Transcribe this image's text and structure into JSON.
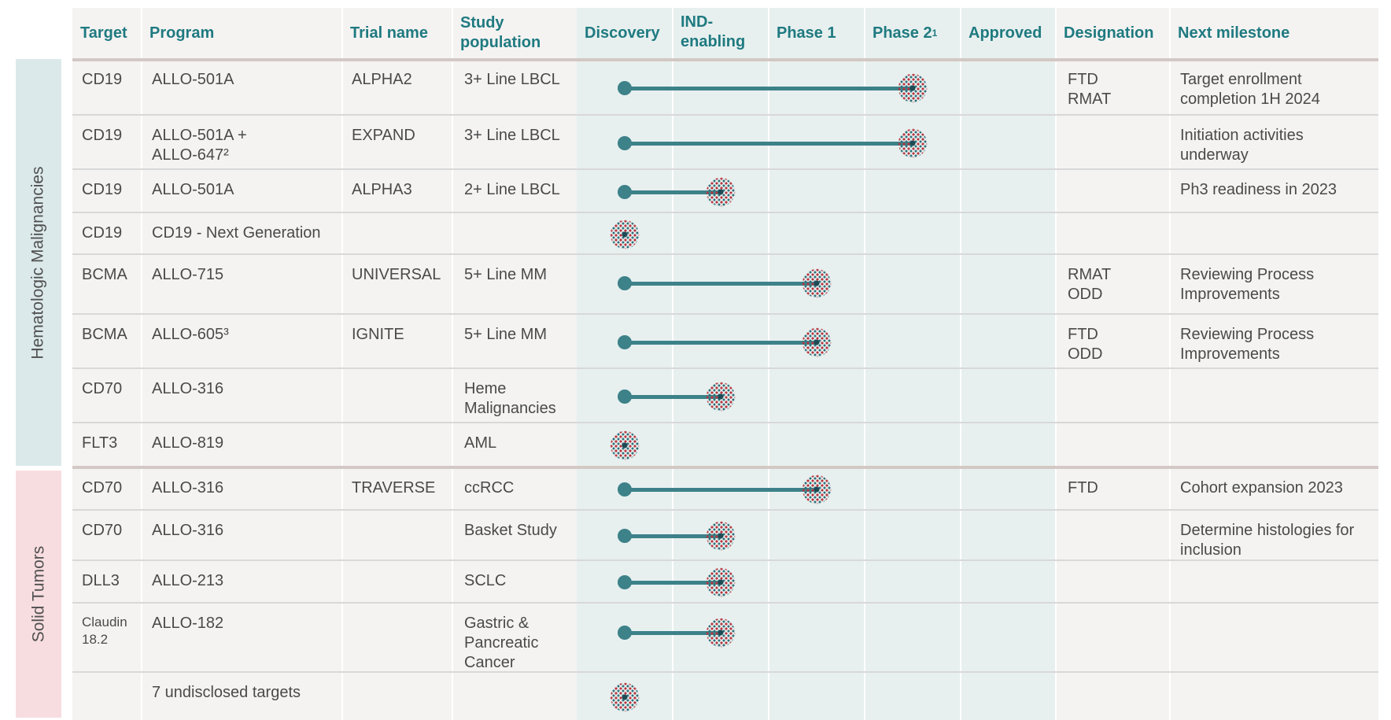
{
  "colors": {
    "header_text": "#1f7a80",
    "bar": "#3d8189",
    "sidebar_heme": "#dce9ea",
    "sidebar_solid": "#f7dde0",
    "phase_columns_bg": "#e7f0ef",
    "text_columns_bg": "#f4f3f2"
  },
  "columns": {
    "target": "Target",
    "program": "Program",
    "trial_name": "Trial name",
    "study_population": "Study\npopulation",
    "discovery": "Discovery",
    "ind_enabling": "IND-\nenabling",
    "phase1": "Phase 1",
    "phase2": "Phase 2",
    "phase2_sup": "1",
    "approved": "Approved",
    "designation": "Designation",
    "next_milestone": "Next milestone"
  },
  "sections": {
    "heme": "Hematologic Malignancies",
    "solid": "Solid Tumors"
  },
  "stage_icon": "starburst-dot-icon",
  "rows": [
    {
      "section": "heme",
      "target": "CD19",
      "program": "ALLO-501A",
      "trial": "ALPHA2",
      "population": "3+ Line LBCL",
      "stage": "Phase 2",
      "designation": "FTD\nRMAT",
      "milestone": "Target enrollment\ncompletion 1H 2024"
    },
    {
      "section": "heme",
      "target": "CD19",
      "program": "ALLO-501A +\nALLO-647²",
      "trial": "EXPAND",
      "population": "3+ Line LBCL",
      "stage": "Phase 2",
      "designation": "",
      "milestone": "Initiation activities\nunderway"
    },
    {
      "section": "heme",
      "target": "CD19",
      "program": "ALLO-501A",
      "trial": "ALPHA3",
      "population": "2+ Line LBCL",
      "stage": "IND-enabling",
      "designation": "",
      "milestone": "Ph3 readiness in 2023"
    },
    {
      "section": "heme",
      "target": "CD19",
      "program": "CD19 - Next Generation",
      "trial": "",
      "population": "",
      "stage": "Discovery",
      "designation": "",
      "milestone": ""
    },
    {
      "section": "heme",
      "target": "BCMA",
      "program": "ALLO-715",
      "trial": "UNIVERSAL",
      "population": "5+ Line MM",
      "stage": "Phase 1",
      "designation": "RMAT\nODD",
      "milestone": "Reviewing Process\nImprovements"
    },
    {
      "section": "heme",
      "target": "BCMA",
      "program": "ALLO-605³",
      "trial": "IGNITE",
      "population": "5+ Line MM",
      "stage": "Phase 1",
      "designation": "FTD\nODD",
      "milestone": "Reviewing Process\nImprovements"
    },
    {
      "section": "heme",
      "target": "CD70",
      "program": "ALLO-316",
      "trial": "",
      "population": "Heme\nMalignancies",
      "stage": "IND-enabling",
      "designation": "",
      "milestone": ""
    },
    {
      "section": "heme",
      "target": "FLT3",
      "program": "ALLO-819",
      "trial": "",
      "population": "AML",
      "stage": "Discovery",
      "designation": "",
      "milestone": ""
    },
    {
      "section": "solid",
      "target": "CD70",
      "program": "ALLO-316",
      "trial": "TRAVERSE",
      "population": "ccRCC",
      "stage": "Phase 1",
      "designation": "FTD",
      "milestone": "Cohort expansion 2023"
    },
    {
      "section": "solid",
      "target": "CD70",
      "program": "ALLO-316",
      "trial": "",
      "population": "Basket Study",
      "stage": "IND-enabling",
      "designation": "",
      "milestone": "Determine histologies for\ninclusion"
    },
    {
      "section": "solid",
      "target": "DLL3",
      "program": "ALLO-213",
      "trial": "",
      "population": "SCLC",
      "stage": "IND-enabling",
      "designation": "",
      "milestone": ""
    },
    {
      "section": "solid",
      "target": "Claudin\n18.2",
      "program": "ALLO-182",
      "trial": "",
      "population": "Gastric &\nPancreatic\nCancer",
      "stage": "IND-enabling",
      "designation": "",
      "milestone": ""
    },
    {
      "section": "solid",
      "target": "",
      "program": "7 undisclosed targets",
      "trial": "",
      "population": "",
      "stage": "Discovery",
      "designation": "",
      "milestone": ""
    }
  ]
}
